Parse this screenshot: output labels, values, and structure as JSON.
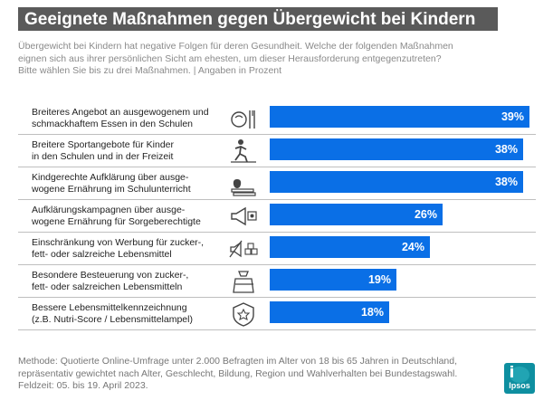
{
  "title": "Geeignete Maßnahmen gegen Übergewicht bei Kindern",
  "subtitle": [
    "Übergewicht bei Kindern hat negative Folgen für deren Gesundheit. Welche der folgenden Maßnahmen",
    "eignen sich aus ihrer persönlichen Sicht am ehesten, um dieser Herausforderung entgegenzutreten?",
    "Bitte wählen Sie bis zu drei Maßnahmen. | Angaben in Prozent"
  ],
  "chart_data": {
    "type": "bar",
    "orientation": "horizontal",
    "categories": [
      [
        "Breiteres Angebot an ausgewogenem und",
        "schmackhaftem Essen in den Schulen"
      ],
      [
        "Breitere Sportangebote für Kinder",
        "in den Schulen und in der Freizeit"
      ],
      [
        "Kindgerechte Aufklärung über ausge-",
        "wogene Ernährung im Schulunterricht"
      ],
      [
        "Aufklärungskampagnen über ausge-",
        "wogene Ernährung für Sorgeberechtigte"
      ],
      [
        "Einschränkung von Werbung für zucker-,",
        "fett- oder salzreiche Lebensmittel"
      ],
      [
        "Besondere Besteuerung von zucker-,",
        "fett- oder salzreichen Lebensmitteln"
      ],
      [
        "Bessere Lebensmittelkennzeichnung",
        "(z.B. Nutri-Score / Lebensmittelampel)"
      ]
    ],
    "values": [
      39,
      38,
      38,
      26,
      24,
      19,
      18
    ],
    "value_labels": [
      "39%",
      "38%",
      "38%",
      "26%",
      "24%",
      "19%",
      "18%"
    ],
    "icons": [
      "food-plate-icon",
      "sport-runner-icon",
      "apple-books-icon",
      "megaphone-icon",
      "no-advertising-icon",
      "tax-bag-icon",
      "nutri-score-badge-icon"
    ],
    "bar_color": "#0a6fe6",
    "xlim": [
      0,
      39
    ]
  },
  "footer": [
    "Methode: Quotierte Online-Umfrage unter 2.000 Befragten im Alter von 18 bis 65 Jahren in Deutschland,",
    "repräsentativ gewichtet nach Alter, Geschlecht, Bildung, Region und Wahlverhalten bei Bundestagswahl.",
    "Feldzeit: 05. bis 19. April 2023."
  ],
  "logo_text": "Ipsos",
  "colors": {
    "title_band": "#5a5a5a",
    "bar": "#0a6fe6",
    "logo": "#0e8fa0"
  }
}
